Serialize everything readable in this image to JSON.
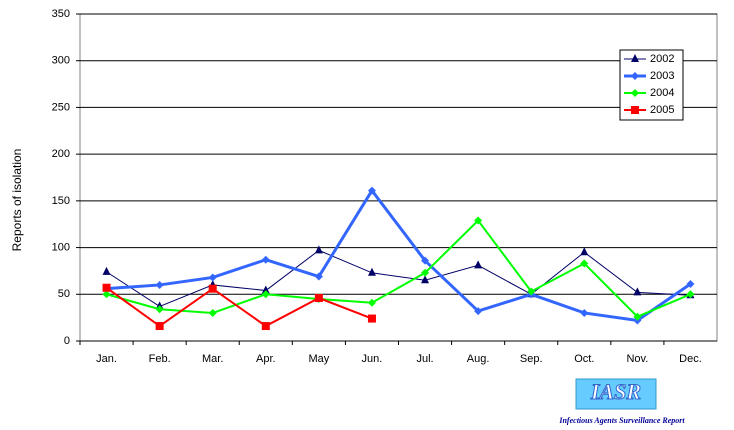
{
  "chart_data": {
    "type": "line",
    "y_label": "Reports of isolation",
    "categories": [
      "Jan.",
      "Feb.",
      "Mar.",
      "Apr.",
      "May",
      "Jun.",
      "Jul.",
      "Aug.",
      "Sep.",
      "Oct.",
      "Nov.",
      "Dec."
    ],
    "series": [
      {
        "name": "2002",
        "color": "#000066",
        "marker": "triangle",
        "line_width": 1,
        "values": [
          74,
          37,
          60,
          54,
          97,
          73,
          65,
          81,
          50,
          95,
          52,
          49
        ]
      },
      {
        "name": "2003",
        "color": "#3366ff",
        "marker": "diamond",
        "line_width": 3,
        "values": [
          56,
          60,
          68,
          87,
          69,
          161,
          86,
          32,
          50,
          30,
          22,
          61
        ]
      },
      {
        "name": "2004",
        "color": "#00ff00",
        "marker": "diamond",
        "line_width": 2,
        "values": [
          50,
          34,
          30,
          50,
          45,
          41,
          73,
          129,
          53,
          83,
          26,
          50
        ]
      },
      {
        "name": "2005",
        "color": "#ff0000",
        "marker": "square",
        "line_width": 2,
        "values": [
          57,
          16,
          56,
          16,
          46,
          24,
          null,
          null,
          null,
          null,
          null,
          null
        ]
      }
    ],
    "ylim": [
      0,
      350
    ],
    "yticks": [
      0,
      50,
      100,
      150,
      200,
      250,
      300,
      350
    ],
    "grid": true,
    "legend": "upper right",
    "annotations": [
      "IASR",
      "Infectious Agents Surveillance Report"
    ]
  }
}
